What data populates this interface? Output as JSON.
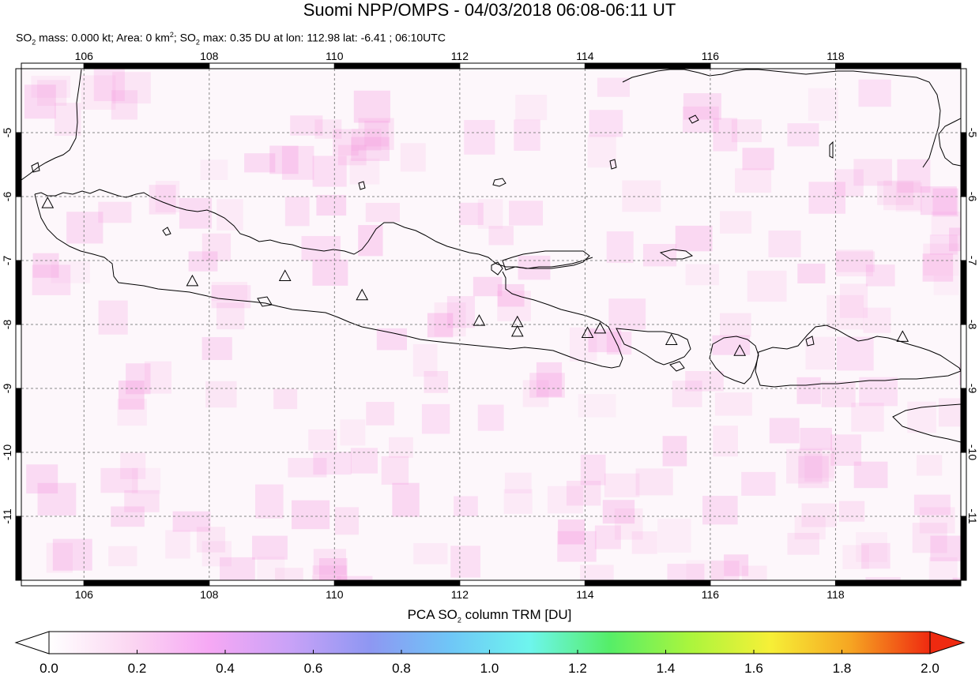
{
  "title": "Suomi NPP/OMPS - 04/03/2018 06:08-06:11 UT",
  "subtitle": {
    "so2_mass_prefix": "SO",
    "so2_mass_text": " mass: 0.000 kt; Area: 0 km",
    "area_unit_sup": "2",
    "so2_max_prefix": "; SO",
    "so2_max_text": " max: 0.35 DU at lon: 112.98 lat: -6.41 ; 06:10UTC",
    "sub2": "2"
  },
  "map": {
    "lon_range": [
      105.0,
      120.0
    ],
    "lat_range": [
      -12.0,
      -4.0
    ],
    "lon_ticks": [
      "106",
      "108",
      "110",
      "112",
      "114",
      "116",
      "118"
    ],
    "lat_ticks": [
      "-5",
      "-6",
      "-7",
      "-8",
      "-9",
      "-10",
      "-11"
    ],
    "volcanoes": [
      {
        "lon": 105.42,
        "lat": -6.1
      },
      {
        "lon": 107.73,
        "lat": -7.32
      },
      {
        "lon": 109.21,
        "lat": -7.24
      },
      {
        "lon": 110.44,
        "lat": -7.54
      },
      {
        "lon": 112.31,
        "lat": -7.94
      },
      {
        "lon": 112.92,
        "lat": -7.96
      },
      {
        "lon": 112.92,
        "lat": -8.11
      },
      {
        "lon": 114.04,
        "lat": -8.13
      },
      {
        "lon": 114.24,
        "lat": -8.06
      },
      {
        "lon": 115.38,
        "lat": -8.24
      },
      {
        "lon": 116.47,
        "lat": -8.41
      },
      {
        "lon": 119.07,
        "lat": -8.19
      }
    ]
  },
  "colorbar": {
    "title_prefix": "PCA SO",
    "title_sub": "2",
    "title_suffix": " column TRM [DU]",
    "range": [
      0.0,
      2.0
    ],
    "tick_labels": [
      "0.0",
      "0.2",
      "0.4",
      "0.6",
      "0.8",
      "1.0",
      "1.2",
      "1.4",
      "1.6",
      "1.8",
      "2.0"
    ],
    "colors": [
      "#ffffff",
      "#fbd7f2",
      "#f6a8f4",
      "#c9a2f7",
      "#8e97f2",
      "#6fc6f7",
      "#6ef5ee",
      "#55ee68",
      "#aaf53d",
      "#f6f037",
      "#f6a622",
      "#ef2a10"
    ]
  }
}
